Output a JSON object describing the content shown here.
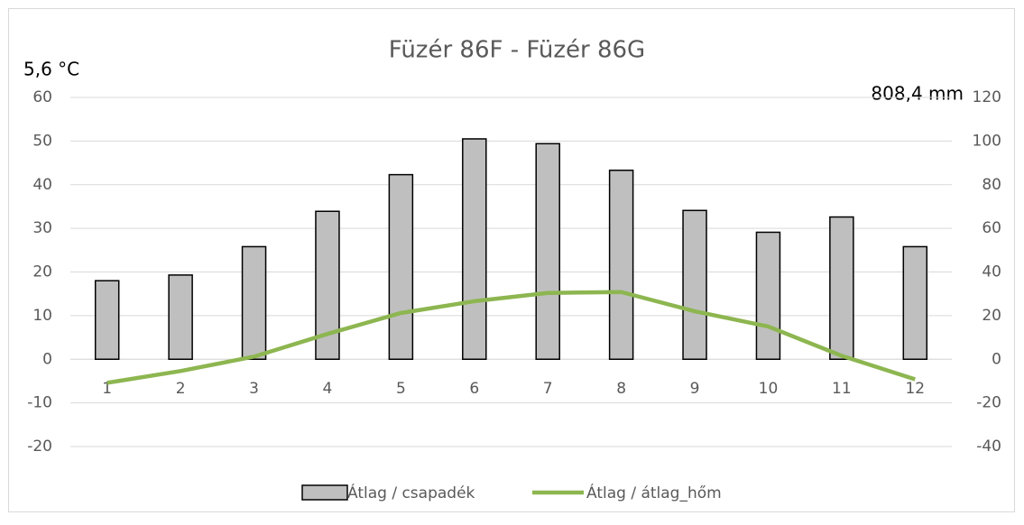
{
  "chart_data": {
    "type": "bar_line",
    "title": "Füzér 86F - Füzér 86G",
    "annotations": [
      "5,6 °C",
      "808,4 mm"
    ],
    "categories": [
      "1",
      "2",
      "3",
      "4",
      "5",
      "6",
      "7",
      "8",
      "9",
      "10",
      "11",
      "12"
    ],
    "series": [
      {
        "name": "Átlag / csapadék",
        "type": "bar",
        "axis": "y2",
        "color": "#bfbfbf",
        "values": [
          36,
          38.6,
          51.6,
          67.8,
          84.6,
          101,
          98.8,
          86.6,
          68.2,
          58.2,
          65.2,
          51.6
        ]
      },
      {
        "name": "Átlag / átlag_hőm",
        "type": "line",
        "axis": "y",
        "color": "#8db650",
        "values": [
          -5.4,
          -2.7,
          0.6,
          5.8,
          10.6,
          13.3,
          15.2,
          15.4,
          11,
          7.5,
          0.8,
          -4.6
        ]
      }
    ],
    "ylim": [
      -20,
      60
    ],
    "yticks": [
      -20,
      -10,
      0,
      10,
      20,
      30,
      40,
      50,
      60
    ],
    "y2lim": [
      -40,
      120
    ],
    "y2ticks": [
      -40,
      -20,
      0,
      20,
      40,
      60,
      80,
      100,
      120
    ],
    "grid": true,
    "legend": "bottom"
  }
}
